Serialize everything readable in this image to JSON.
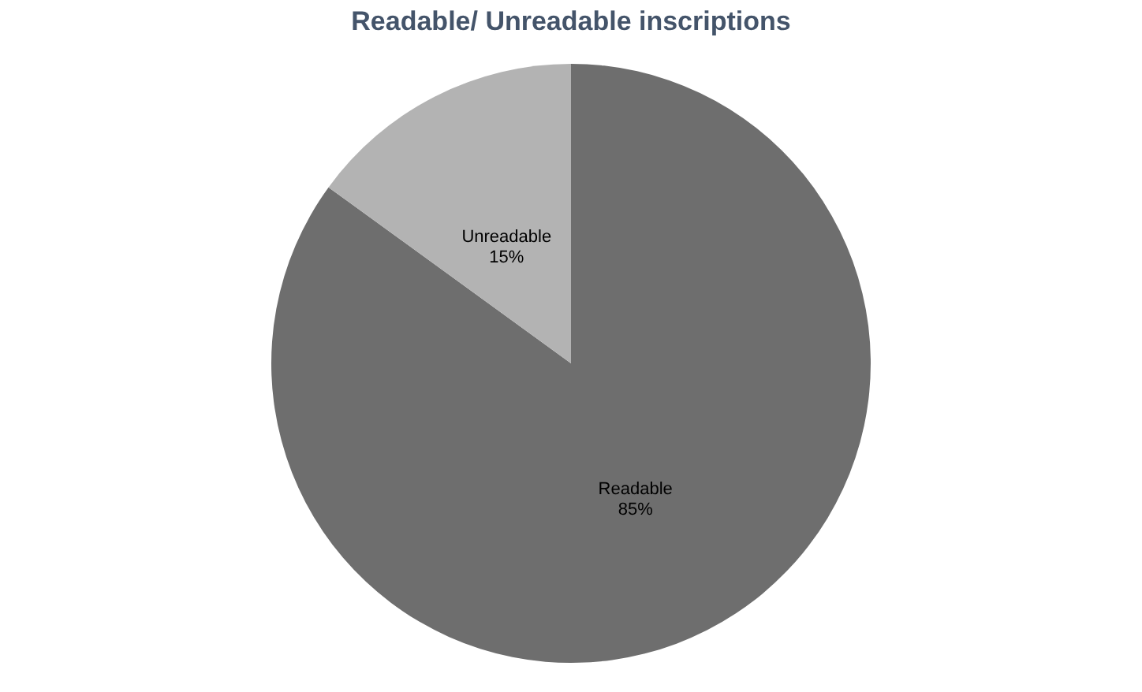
{
  "chart_data": {
    "type": "pie",
    "title": "Readable/ Unreadable inscriptions",
    "categories": [
      "Readable",
      "Unreadable"
    ],
    "values": [
      85,
      15
    ],
    "colors": [
      "#6e6e6e",
      "#b3b3b3"
    ],
    "value_labels": [
      "85%",
      "15%"
    ],
    "legend": false
  }
}
